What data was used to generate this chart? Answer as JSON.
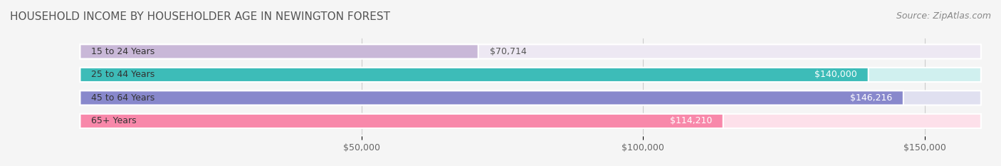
{
  "title": "HOUSEHOLD INCOME BY HOUSEHOLDER AGE IN NEWINGTON FOREST",
  "source": "Source: ZipAtlas.com",
  "categories": [
    "15 to 24 Years",
    "25 to 44 Years",
    "45 to 64 Years",
    "65+ Years"
  ],
  "values": [
    70714,
    140000,
    146216,
    114210
  ],
  "bar_colors": [
    "#c9b8d8",
    "#3dbcb8",
    "#8888cc",
    "#f888aa"
  ],
  "bar_bg_colors": [
    "#ede8f3",
    "#d0f0ef",
    "#e0e0f0",
    "#fde0ea"
  ],
  "value_labels": [
    "$70,714",
    "$140,000",
    "$146,216",
    "$114,210"
  ],
  "value_label_colors": [
    "#555555",
    "#ffffff",
    "#ffffff",
    "#ffffff"
  ],
  "xlim": [
    0,
    160000
  ],
  "xticks": [
    50000,
    100000,
    150000
  ],
  "xticklabels": [
    "$50,000",
    "$100,000",
    "$150,000"
  ],
  "background_color": "#f5f5f5",
  "bar_height": 0.62,
  "title_fontsize": 11,
  "source_fontsize": 9,
  "label_fontsize": 9,
  "tick_fontsize": 9
}
